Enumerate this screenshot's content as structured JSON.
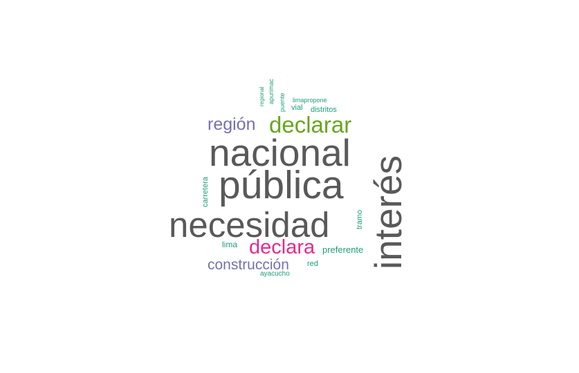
{
  "colors": {
    "gray": "#595959",
    "green": "#1b9e77",
    "olive": "#66a61e",
    "purple": "#7570b3",
    "magenta": "#e7298a"
  },
  "words": {
    "nacional": "nacional",
    "publica": "pública",
    "necesidad": "necesidad",
    "interes": "interés",
    "declarar": "declarar",
    "region": "región",
    "declara": "declara",
    "construccion": "construcción",
    "carretera": "carretera",
    "tramo": "tramo",
    "lima": "lima",
    "preferente": "preferente",
    "red": "red",
    "ayacucho": "ayacucho",
    "distritos": "distritos",
    "vial": "vial",
    "limapropone": "limapropone",
    "puente": "puente",
    "apurimac": "apurimac",
    "regional": "regional"
  }
}
